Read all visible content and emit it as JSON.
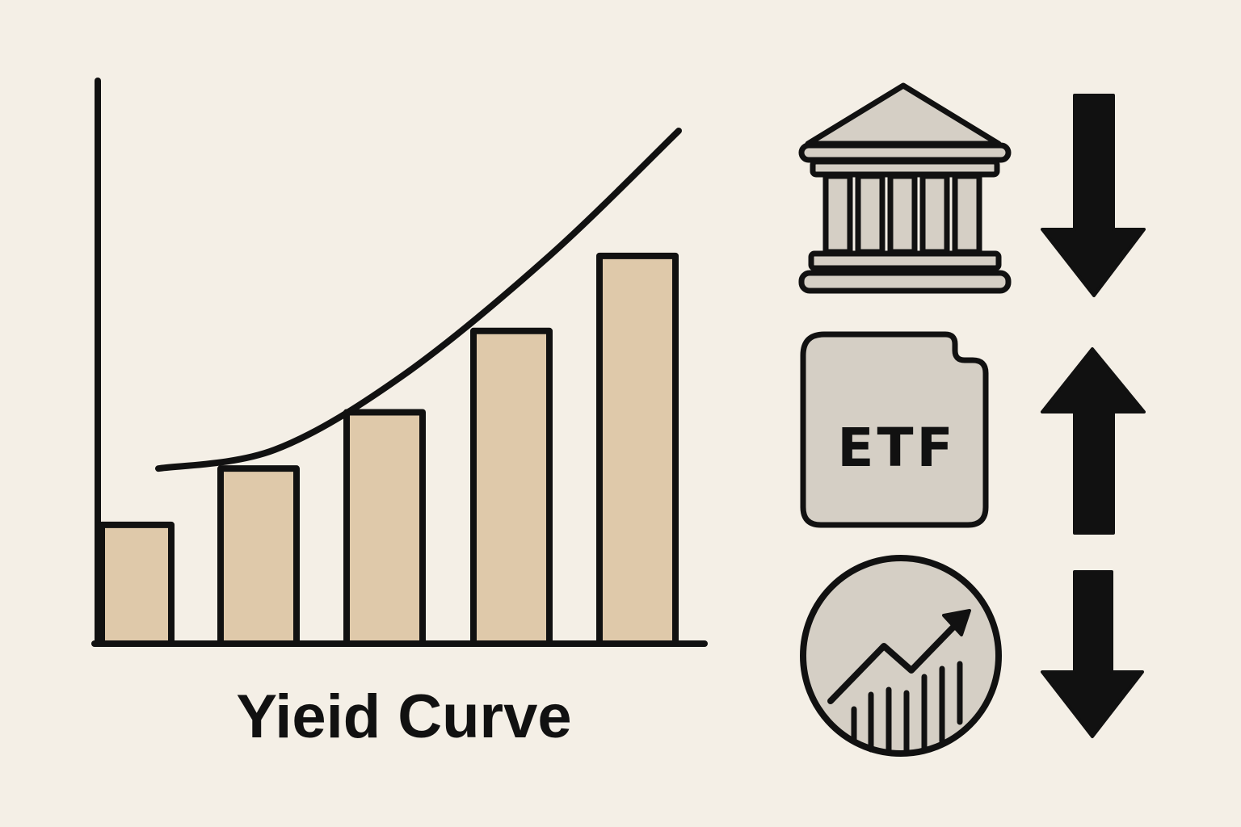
{
  "title": "Yieid Curve",
  "icons": [
    {
      "name": "bank-icon",
      "trend": "down"
    },
    {
      "name": "etf-icon",
      "label": "ETF",
      "trend": "up"
    },
    {
      "name": "chart-circle-icon",
      "trend": "down"
    }
  ],
  "chart_data": {
    "type": "bar",
    "categories": [
      "",
      "",
      "",
      "",
      ""
    ],
    "values": [
      19,
      28,
      37,
      50,
      62
    ],
    "curve": [
      28,
      31,
      43,
      62,
      82
    ],
    "ylim": [
      0,
      90
    ],
    "grid": false,
    "title": "",
    "xlabel": "",
    "ylabel": ""
  },
  "colors": {
    "background": "#f4efe6",
    "bar_fill": "#dfc9aa",
    "ink": "#111111",
    "icon_fill": "#d5cfc5"
  }
}
